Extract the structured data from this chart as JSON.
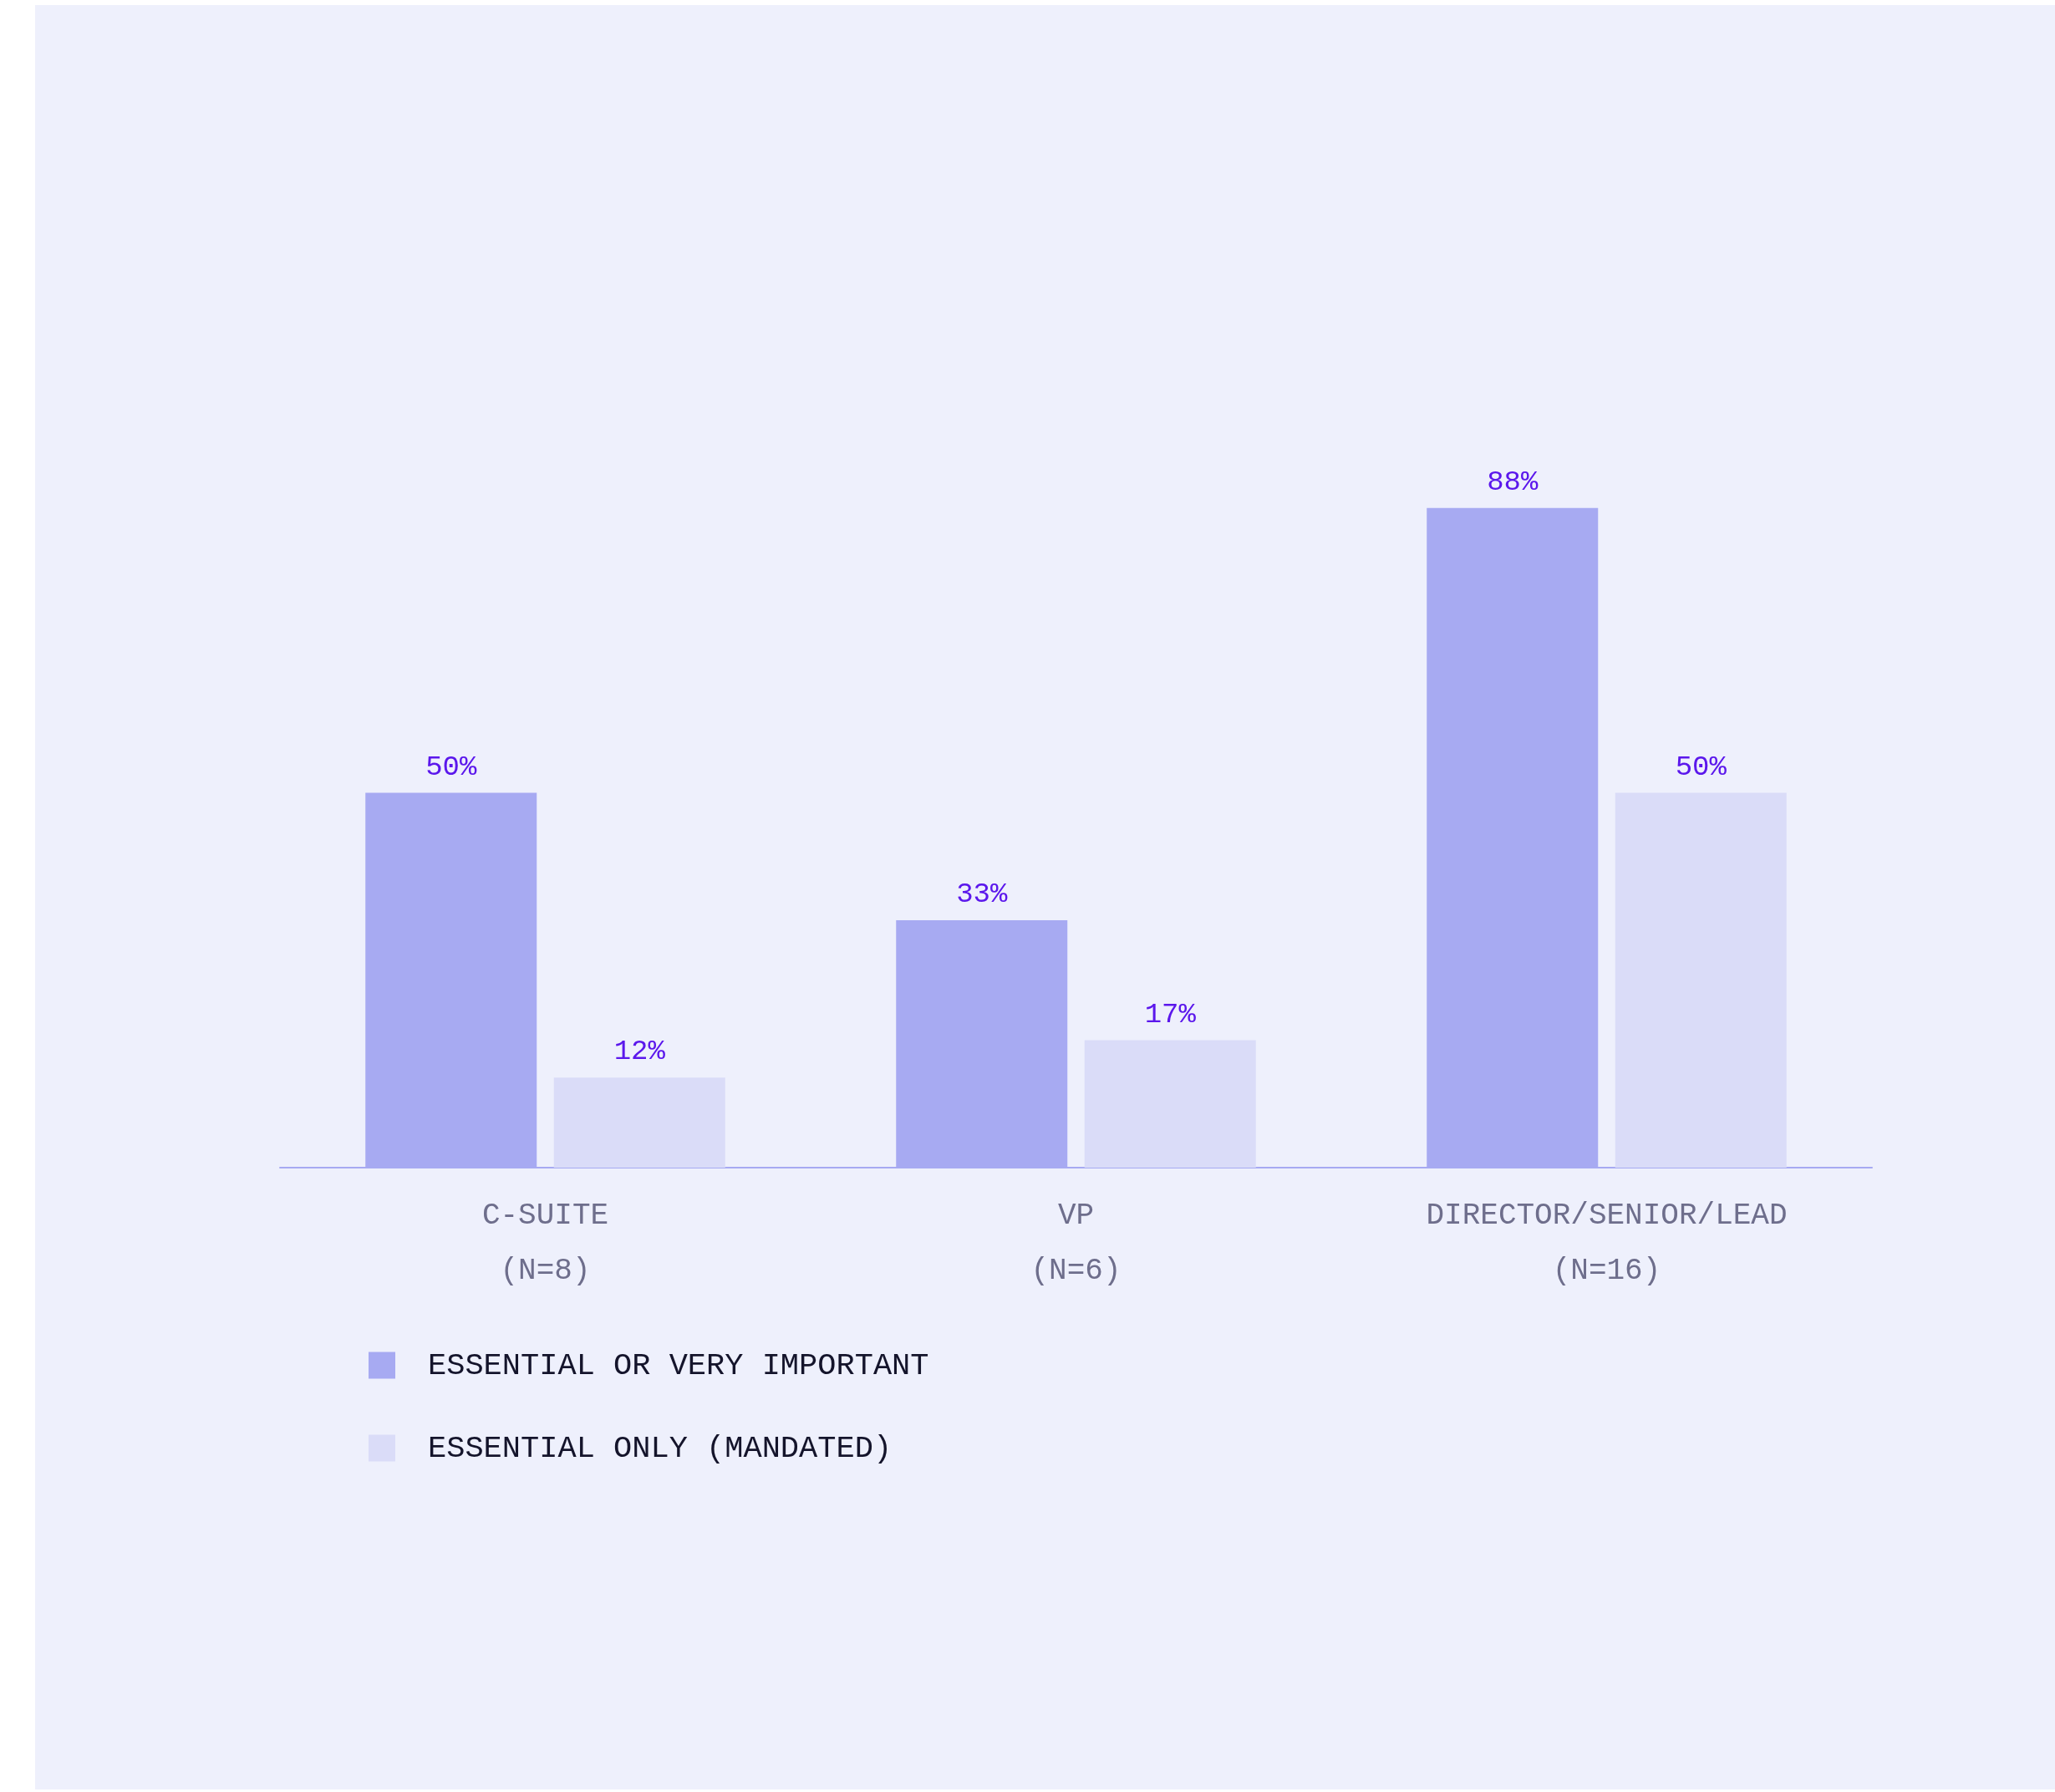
{
  "chart_data": {
    "type": "bar",
    "categories": [
      "C-SUITE\n(N=8)",
      "VP\n(N=6)",
      "DIRECTOR/SENIOR/LEAD\n(N=16)"
    ],
    "series": [
      {
        "name": "ESSENTIAL OR VERY IMPORTANT",
        "color": "#a7aaf2",
        "values": [
          50,
          33,
          88
        ],
        "value_labels": [
          "50%",
          "33%",
          "88%"
        ]
      },
      {
        "name": "ESSENTIAL ONLY (MANDATED)",
        "color": "#dadcf8",
        "values": [
          12,
          17,
          50
        ],
        "value_labels": [
          "12%",
          "17%",
          "50%"
        ]
      }
    ],
    "legend": "bottom left",
    "grid": false
  }
}
